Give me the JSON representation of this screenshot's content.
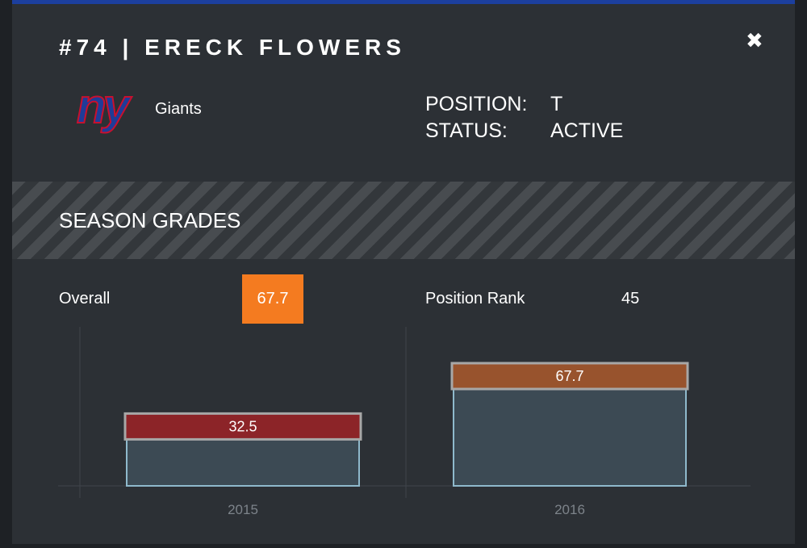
{
  "header": {
    "title": "#74 | ERECK FLOWERS",
    "close": "✖"
  },
  "team": {
    "logo": "ny",
    "name": "Giants"
  },
  "info": {
    "position_label": "POSITION:",
    "position": "T",
    "status_label": "STATUS:",
    "status": "ACTIVE"
  },
  "section": {
    "title": "SEASON GRADES"
  },
  "summary": {
    "overall_label": "Overall",
    "overall": 67.7,
    "rank_label": "Position Rank",
    "rank": 45
  },
  "chart_data": {
    "type": "bar",
    "categories": [
      "2015",
      "2016"
    ],
    "values": [
      32.5,
      67.7
    ],
    "colors": [
      "#8c2428",
      "#98532d"
    ],
    "bar_color": "#3c4a54",
    "edge_color": "#8fb9cc"
  }
}
